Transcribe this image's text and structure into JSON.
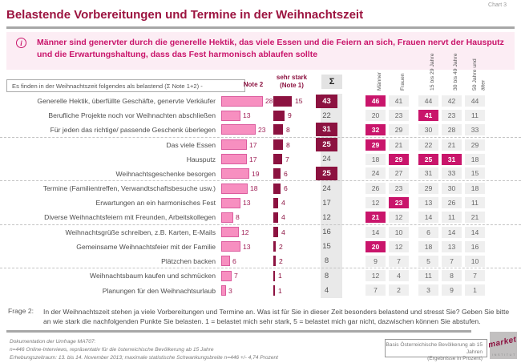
{
  "page": {
    "title": "Belastende Vorbereitungen und Termine in der Weihnachtszeit",
    "chart_label": "Chart 3"
  },
  "insight": {
    "text": "Männer sind genervter durch die generelle Hektik, das viele Essen und die Feiern an sich, Frauen nervt der Hausputz und die Erwartungshaltung, dass das Fest harmonisch ablaufen sollte"
  },
  "chart_data": {
    "type": "bar",
    "title": "Belastende Vorbereitungen und Termine in der Weihnachtszeit",
    "unit": "Prozent",
    "intro_label": "Es finden in der  Weihnachtszeit folgendes als belastend (Σ Note  1+2) -",
    "legend": {
      "note2": "Note  2",
      "note1_line1": "sehr stark",
      "note1_line2": "(Note  1)",
      "sum": "Σ"
    },
    "demo_columns": [
      "Männer",
      "Frauen",
      "15 bis 29 Jahre",
      "30 bis 49 Jahre",
      "50 Jahre und älter"
    ],
    "axis": {
      "note2_max": 28,
      "note1_max": 15
    },
    "rows": [
      {
        "label": "Generelle Hektik, überfüllte Geschäfte, genervte Verkäufer",
        "note2": 28,
        "note1": 15,
        "sum": 43,
        "sum_highlight": true,
        "group_end": false,
        "demo": [
          {
            "v": 46,
            "hl": true
          },
          {
            "v": 41,
            "hl": false
          },
          {
            "v": 44,
            "hl": false
          },
          {
            "v": 42,
            "hl": false
          },
          {
            "v": 44,
            "hl": false
          }
        ]
      },
      {
        "label": "Berufliche Projekte noch vor Weihnachten abschließen",
        "note2": 13,
        "note1": 9,
        "sum": 22,
        "sum_highlight": false,
        "group_end": false,
        "demo": [
          {
            "v": 20,
            "hl": false
          },
          {
            "v": 23,
            "hl": false
          },
          {
            "v": 41,
            "hl": true
          },
          {
            "v": 23,
            "hl": false
          },
          {
            "v": 11,
            "hl": false
          }
        ]
      },
      {
        "label": "Für jeden das richtige/ passende Geschenk überlegen",
        "note2": 23,
        "note1": 8,
        "sum": 31,
        "sum_highlight": true,
        "group_end": true,
        "demo": [
          {
            "v": 32,
            "hl": true
          },
          {
            "v": 29,
            "hl": false
          },
          {
            "v": 30,
            "hl": false
          },
          {
            "v": 28,
            "hl": false
          },
          {
            "v": 33,
            "hl": false
          }
        ]
      },
      {
        "label": "Das viele Essen",
        "note2": 17,
        "note1": 8,
        "sum": 25,
        "sum_highlight": true,
        "group_end": false,
        "demo": [
          {
            "v": 29,
            "hl": true
          },
          {
            "v": 21,
            "hl": false
          },
          {
            "v": 22,
            "hl": false
          },
          {
            "v": 21,
            "hl": false
          },
          {
            "v": 29,
            "hl": false
          }
        ]
      },
      {
        "label": "Hausputz",
        "note2": 17,
        "note1": 7,
        "sum": 24,
        "sum_highlight": false,
        "group_end": false,
        "demo": [
          {
            "v": 18,
            "hl": false
          },
          {
            "v": 29,
            "hl": true
          },
          {
            "v": 25,
            "hl": true
          },
          {
            "v": 31,
            "hl": true
          },
          {
            "v": 18,
            "hl": false
          }
        ]
      },
      {
        "label": "Weihnachtsgeschenke besorgen",
        "note2": 19,
        "note1": 6,
        "sum": 25,
        "sum_highlight": true,
        "group_end": true,
        "demo": [
          {
            "v": 24,
            "hl": false
          },
          {
            "v": 27,
            "hl": false
          },
          {
            "v": 31,
            "hl": false
          },
          {
            "v": 33,
            "hl": false
          },
          {
            "v": 15,
            "hl": false
          }
        ]
      },
      {
        "label": "Termine (Familientreffen, Verwandtschaftsbesuche usw.)",
        "note2": 18,
        "note1": 6,
        "sum": 24,
        "sum_highlight": false,
        "group_end": false,
        "demo": [
          {
            "v": 26,
            "hl": false
          },
          {
            "v": 23,
            "hl": false
          },
          {
            "v": 29,
            "hl": false
          },
          {
            "v": 30,
            "hl": false
          },
          {
            "v": 18,
            "hl": false
          }
        ]
      },
      {
        "label": "Erwartungen an ein harmonisches Fest",
        "note2": 13,
        "note1": 4,
        "sum": 17,
        "sum_highlight": false,
        "group_end": false,
        "demo": [
          {
            "v": 12,
            "hl": false
          },
          {
            "v": 23,
            "hl": true
          },
          {
            "v": 13,
            "hl": false
          },
          {
            "v": 26,
            "hl": false
          },
          {
            "v": 11,
            "hl": false
          }
        ]
      },
      {
        "label": "Diverse Weihnachtsfeiern mit Freunden, Arbeitskollegen",
        "note2": 8,
        "note1": 4,
        "sum": 12,
        "sum_highlight": false,
        "group_end": true,
        "demo": [
          {
            "v": 21,
            "hl": true
          },
          {
            "v": 12,
            "hl": false
          },
          {
            "v": 14,
            "hl": false
          },
          {
            "v": 11,
            "hl": false
          },
          {
            "v": 21,
            "hl": false
          }
        ]
      },
      {
        "label": "Weihnachtsgrüße schreiben, z.B. Karten, E-Mails",
        "note2": 12,
        "note1": 4,
        "sum": 16,
        "sum_highlight": false,
        "group_end": false,
        "demo": [
          {
            "v": 14,
            "hl": false
          },
          {
            "v": 10,
            "hl": false
          },
          {
            "v": 6,
            "hl": false
          },
          {
            "v": 14,
            "hl": false
          },
          {
            "v": 14,
            "hl": false
          }
        ]
      },
      {
        "label": "Gemeinsame Weihnachtsfeier mit der Familie",
        "note2": 13,
        "note1": 2,
        "sum": 15,
        "sum_highlight": false,
        "group_end": false,
        "demo": [
          {
            "v": 20,
            "hl": true
          },
          {
            "v": 12,
            "hl": false
          },
          {
            "v": 18,
            "hl": false
          },
          {
            "v": 13,
            "hl": false
          },
          {
            "v": 16,
            "hl": false
          }
        ]
      },
      {
        "label": "Plätzchen backen",
        "note2": 6,
        "note1": 2,
        "sum": 8,
        "sum_highlight": false,
        "group_end": true,
        "demo": [
          {
            "v": 9,
            "hl": false
          },
          {
            "v": 7,
            "hl": false
          },
          {
            "v": 5,
            "hl": false
          },
          {
            "v": 7,
            "hl": false
          },
          {
            "v": 10,
            "hl": false
          }
        ]
      },
      {
        "label": "Weihnachtsbaum kaufen und schmücken",
        "note2": 7,
        "note1": 1,
        "sum": 8,
        "sum_highlight": false,
        "group_end": false,
        "demo": [
          {
            "v": 12,
            "hl": false
          },
          {
            "v": 4,
            "hl": false
          },
          {
            "v": 11,
            "hl": false
          },
          {
            "v": 8,
            "hl": false
          },
          {
            "v": 7,
            "hl": false
          }
        ]
      },
      {
        "label": "Planungen für den Weihnachtsurlaub",
        "note2": 3,
        "note1": 1,
        "sum": 4,
        "sum_highlight": false,
        "group_end": false,
        "demo": [
          {
            "v": 7,
            "hl": false
          },
          {
            "v": 2,
            "hl": false
          },
          {
            "v": 3,
            "hl": false
          },
          {
            "v": 9,
            "hl": false
          },
          {
            "v": 1,
            "hl": false
          }
        ]
      }
    ]
  },
  "question": {
    "label": "Frage 2:",
    "text": "In der Weihnachtszeit stehen ja viele Vorbereitungen und Termine an. Was ist für Sie in dieser Zeit besonders belastend und stresst Sie? Geben Sie bitte an wie stark die nachfolgenden Punkte Sie belasten. 1 = belastet mich sehr stark, 5 = belastet mich gar nicht, dazwischen können Sie abstufen."
  },
  "footer": {
    "doc_line1": "Dokumentation der Umfrage MA707:",
    "doc_line2": "n=446 Online-Interviews, repräsentativ für die österreichische Bevölkerung ab 15 Jahre",
    "doc_line3": "Erhebungszeitraum: 13. bis 14. November 2013; maximale statistische Schwankungsbreite n=446 +/- 4,74 Prozent",
    "basis_line1": "Basis Österreichische Bevölkerung ab 15 Jahren",
    "basis_line2": "(Ergebnisse in Prozent)",
    "logo_text": "market",
    "logo_sub": "institut"
  },
  "colors": {
    "title": "#9c1440",
    "insight": "#c9156b",
    "bar_note2_fill": "#f78fc0",
    "bar_note2_border": "#db5c9e",
    "bar_note1": "#8c1240",
    "sum_highlight_bg": "#8c1240",
    "demo_highlight_bg": "#c9156b",
    "cell_bg": "#efefef",
    "sum_band_bg": "#e9e9e9",
    "info_bg": "#fcedf4"
  }
}
